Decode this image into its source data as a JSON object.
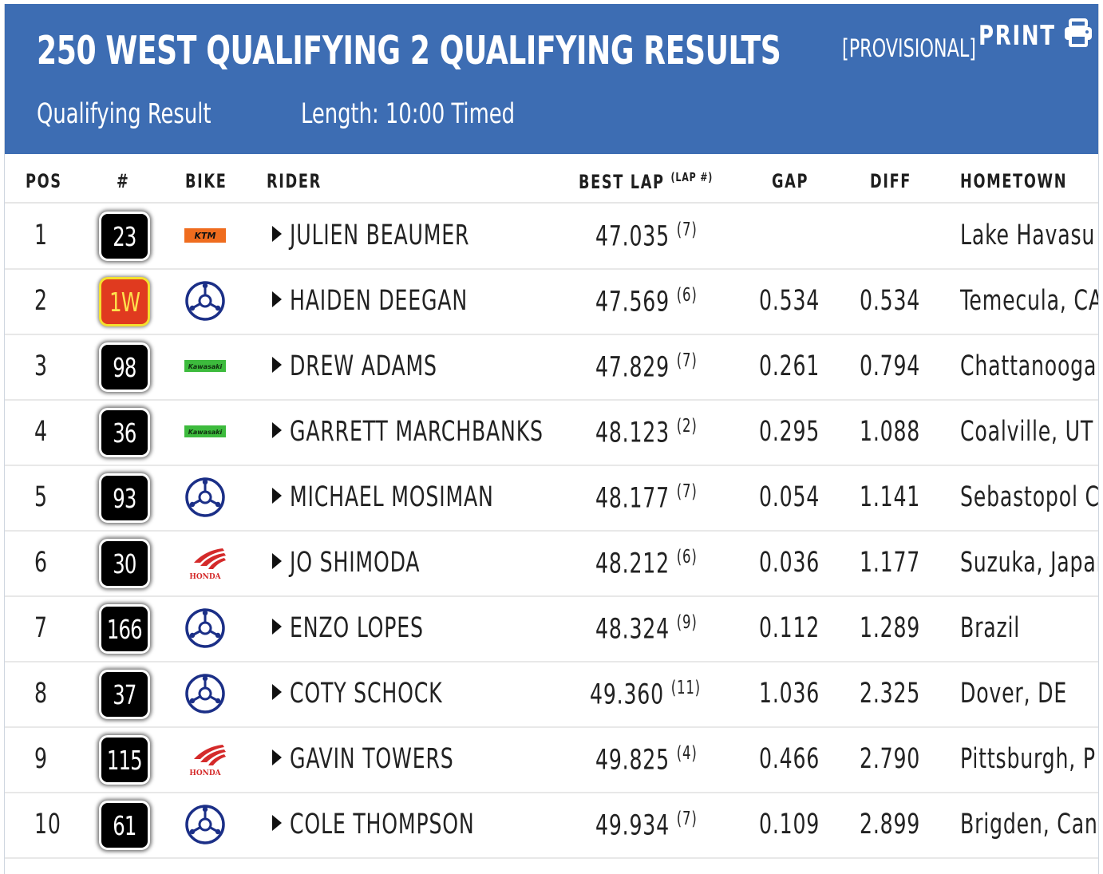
{
  "header": {
    "title": "250 WEST QUALIFYING 2 QUALIFYING RESULTS",
    "status": "[PROVISIONAL]",
    "print_label": "PRINT",
    "session_type": "Qualifying Result",
    "length": "Length: 10:00 Timed"
  },
  "columns": {
    "pos": "POS",
    "num": "#",
    "bike": "BIKE",
    "rider": "RIDER",
    "best_lap": "BEST LAP",
    "lap_no": "(LAP #)",
    "gap": "GAP",
    "diff": "DIFF",
    "hometown": "HOMETOWN"
  },
  "colors": {
    "header_bg": "#3d6db3",
    "ktm": "#ef6c1e",
    "kawasaki": "#3dbb3d",
    "yamaha": "#1b2f87",
    "honda": "#d42a2a",
    "red_plate": "#e03a1f"
  },
  "rows": [
    {
      "pos": "1",
      "num": "23",
      "plate": "black",
      "bike": "ktm-logo",
      "rider": "JULIEN BEAUMER",
      "best_lap": "47.035",
      "lap": "(7)",
      "gap": "",
      "diff": "",
      "hometown": "Lake Havasu"
    },
    {
      "pos": "2",
      "num": "1W",
      "plate": "red",
      "bike": "yamaha-logo",
      "rider": "HAIDEN DEEGAN",
      "best_lap": "47.569",
      "lap": "(6)",
      "gap": "0.534",
      "diff": "0.534",
      "hometown": "Temecula, CA"
    },
    {
      "pos": "3",
      "num": "98",
      "plate": "black",
      "bike": "kawasaki-logo",
      "rider": "DREW ADAMS",
      "best_lap": "47.829",
      "lap": "(7)",
      "gap": "0.261",
      "diff": "0.794",
      "hometown": "Chattanooga"
    },
    {
      "pos": "4",
      "num": "36",
      "plate": "black",
      "bike": "kawasaki-logo",
      "rider": "GARRETT MARCHBANKS",
      "best_lap": "48.123",
      "lap": "(2)",
      "gap": "0.295",
      "diff": "1.088",
      "hometown": "Coalville, UT"
    },
    {
      "pos": "5",
      "num": "93",
      "plate": "black",
      "bike": "yamaha-logo",
      "rider": "MICHAEL MOSIMAN",
      "best_lap": "48.177",
      "lap": "(7)",
      "gap": "0.054",
      "diff": "1.141",
      "hometown": "Sebastopol C"
    },
    {
      "pos": "6",
      "num": "30",
      "plate": "black",
      "bike": "honda-logo",
      "rider": "JO SHIMODA",
      "best_lap": "48.212",
      "lap": "(6)",
      "gap": "0.036",
      "diff": "1.177",
      "hometown": "Suzuka, Japan"
    },
    {
      "pos": "7",
      "num": "166",
      "plate": "black",
      "bike": "yamaha-logo",
      "rider": "ENZO LOPES",
      "best_lap": "48.324",
      "lap": "(9)",
      "gap": "0.112",
      "diff": "1.289",
      "hometown": "Brazil"
    },
    {
      "pos": "8",
      "num": "37",
      "plate": "black",
      "bike": "yamaha-logo",
      "rider": "COTY SCHOCK",
      "best_lap": "49.360",
      "lap": "(11)",
      "gap": "1.036",
      "diff": "2.325",
      "hometown": "Dover, DE"
    },
    {
      "pos": "9",
      "num": "115",
      "plate": "black",
      "bike": "honda-logo",
      "rider": "GAVIN TOWERS",
      "best_lap": "49.825",
      "lap": "(4)",
      "gap": "0.466",
      "diff": "2.790",
      "hometown": "Pittsburgh, P"
    },
    {
      "pos": "10",
      "num": "61",
      "plate": "black",
      "bike": "yamaha-logo",
      "rider": "COLE THOMPSON",
      "best_lap": "49.934",
      "lap": "(7)",
      "gap": "0.109",
      "diff": "2.899",
      "hometown": "Brigden, Can"
    }
  ]
}
